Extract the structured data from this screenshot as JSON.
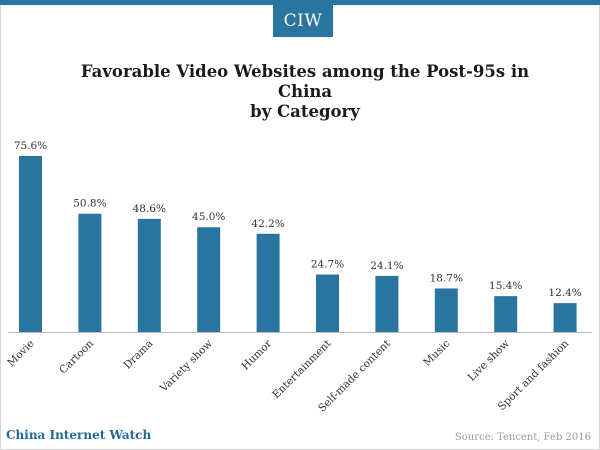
{
  "header": {
    "logo_text": "CIW",
    "accent_color": "#2a74a0"
  },
  "footer": {
    "brand": "China Internet Watch",
    "source": "Source: Tencent, Feb 2016"
  },
  "chart_data": {
    "type": "bar",
    "title_lines": [
      "Favorable Video Websites among the Post-95s in China",
      "by Category"
    ],
    "categories": [
      "Movie",
      "Cartoon",
      "Drama",
      "Variety show",
      "Humor",
      "Entertainment",
      "Self-made content",
      "Music",
      "Live show",
      "Sport and fashion"
    ],
    "values": [
      75.6,
      50.8,
      48.6,
      45.0,
      42.2,
      24.7,
      24.1,
      18.7,
      15.4,
      12.4
    ],
    "data_labels": [
      "75.6%",
      "50.8%",
      "48.6%",
      "45.0%",
      "42.2%",
      "24.7%",
      "24.1%",
      "18.7%",
      "15.4%",
      "12.4%"
    ],
    "ylim": [
      0,
      80
    ],
    "grid": false,
    "bar_color": "#2a74a0"
  }
}
